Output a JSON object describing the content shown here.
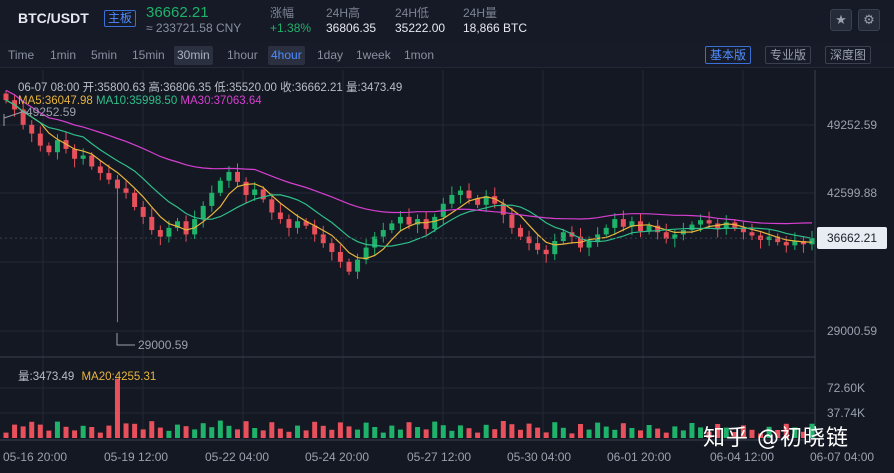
{
  "header": {
    "pair": "BTC/USDT",
    "board": "主板",
    "last_price": "36662.21",
    "cny": "≈ 233721.58 CNY",
    "stats": [
      {
        "label": "涨幅",
        "value": "+1.38%"
      },
      {
        "label": "24H高",
        "value": "36806.35"
      },
      {
        "label": "24H低",
        "value": "35222.00"
      },
      {
        "label": "24H量",
        "value": "18,866 BTC"
      }
    ],
    "star_icon": "star-icon",
    "settings_icon": "gear-icon"
  },
  "toolbar": {
    "timeframes": [
      "Time",
      "1min",
      "5min",
      "15min",
      "30min",
      "1hour",
      "4hour",
      "1day",
      "1week",
      "1mon"
    ],
    "active": "30min",
    "selected": "4hour",
    "modes": [
      "基本版",
      "专业版",
      "深度图"
    ],
    "mode_on": "基本版"
  },
  "info": {
    "ohlc": "06-07 08:00   开:35800.63  高:36806.35  低:35520.00  收:36662.21   量:3473.49",
    "ma5": "MA5:36047.98",
    "ma10": "MA10:35998.50",
    "ma30": "MA30:37063.64"
  },
  "volume": {
    "vol": "量:3473.49",
    "ma20": "MA20:4255.31"
  },
  "price_axis": [
    "49252.59",
    "42599.88",
    "36662.21",
    "29000.59"
  ],
  "volume_axis": [
    "72.60K",
    "37.74K"
  ],
  "time_axis": [
    "05-16 20:00",
    "05-19 12:00",
    "05-22 04:00",
    "05-24 20:00",
    "05-27 12:00",
    "05-30 04:00",
    "06-01 20:00",
    "06-04 12:00",
    "06-07 04:00"
  ],
  "annotations": {
    "high": "49252.59",
    "low": "29000.59"
  },
  "watermark": "知乎 @初晓链",
  "colors": {
    "up": "#1fb26b",
    "down": "#e8505b",
    "ma5": "#e8b53d",
    "ma10": "#2fbf8a",
    "ma30": "#d63fd0"
  },
  "chart_data": {
    "type": "candlestick",
    "interval": "4hour",
    "price_range": [
      26000,
      52000
    ],
    "closes": [
      49252,
      48400,
      47000,
      46200,
      45100,
      44500,
      45600,
      44800,
      43900,
      44200,
      43200,
      42600,
      42000,
      41200,
      40800,
      39500,
      38600,
      37400,
      36800,
      37600,
      38200,
      37000,
      38400,
      39600,
      40800,
      41900,
      42700,
      41800,
      40600,
      41100,
      40200,
      39000,
      38400,
      37600,
      38200,
      37800,
      37000,
      36200,
      35400,
      34500,
      33600,
      34700,
      35800,
      36800,
      37400,
      38000,
      38600,
      37900,
      38400,
      37500,
      38600,
      39800,
      40600,
      41000,
      40300,
      39700,
      40500,
      39800,
      38800,
      37600,
      36800,
      36200,
      35600,
      35200,
      36400,
      37200,
      36800,
      35800,
      36400,
      37000,
      37600,
      38400,
      37700,
      38200,
      37300,
      37800,
      37200,
      36600,
      37000,
      37400,
      37900,
      38300,
      38000,
      37500,
      38100,
      37600,
      37200,
      36900,
      36500,
      36800,
      36300,
      36000,
      36400,
      36100,
      36662
    ],
    "volume_range": [
      0,
      90000
    ]
  }
}
